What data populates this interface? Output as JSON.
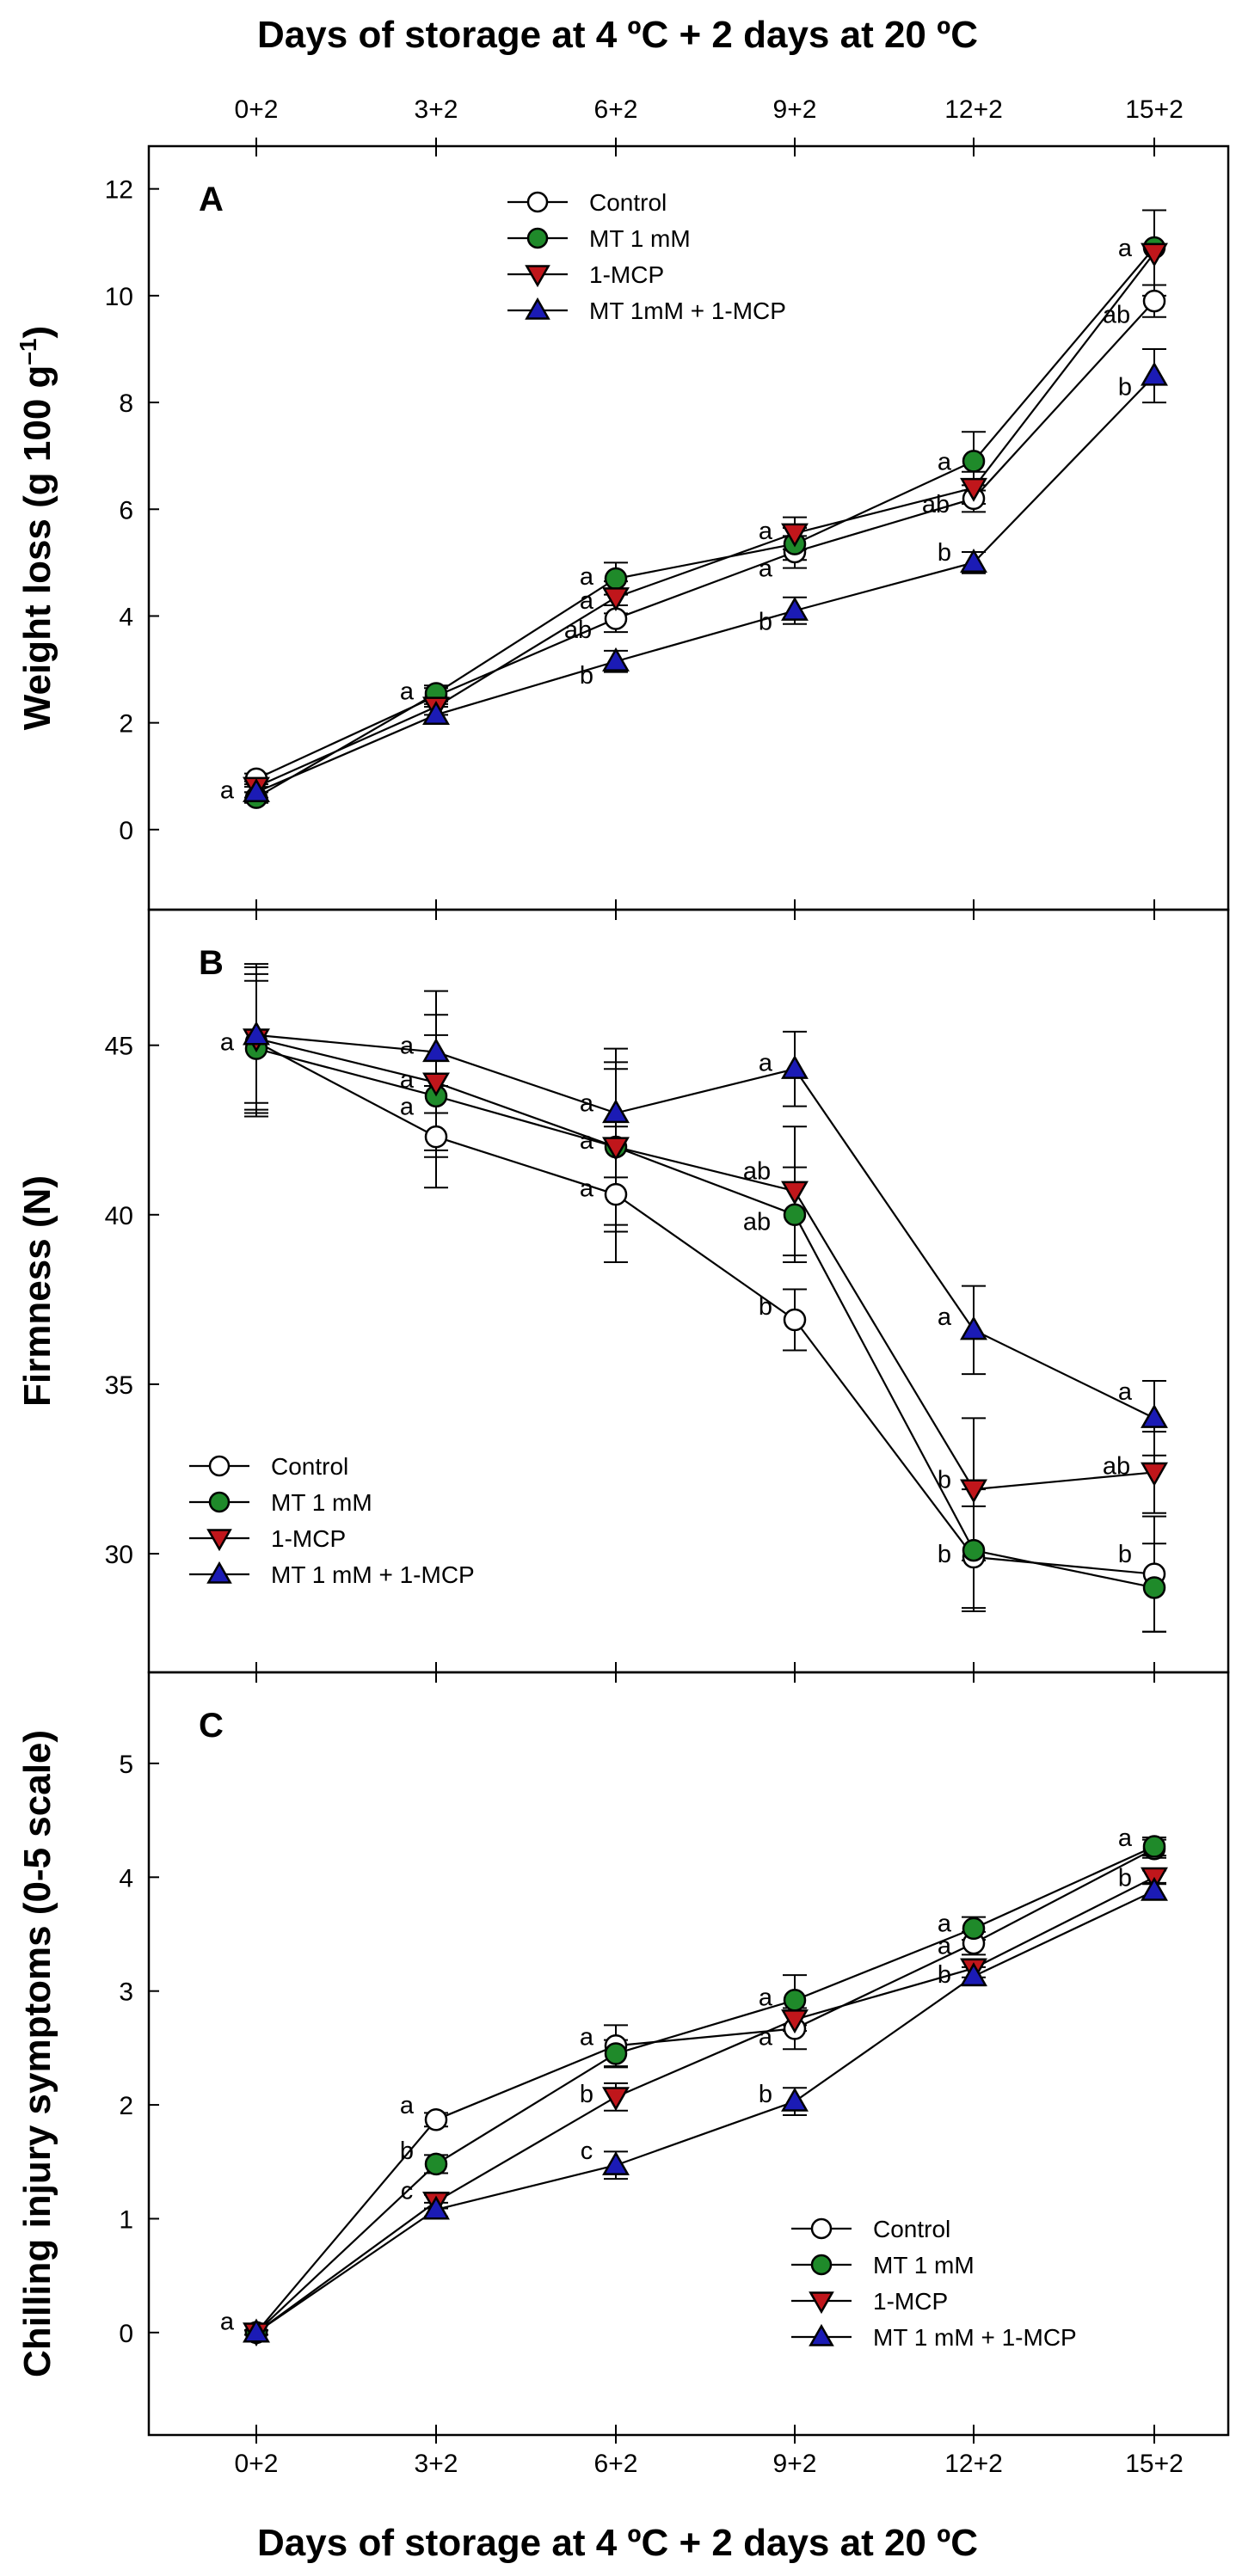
{
  "figure": {
    "top_xlabel": "Days of storage at 4 ºC + 2 days at 20 ºC",
    "bottom_xlabel": "Days of storage at 4 ºC + 2 days at 20 ºC",
    "x_categories": [
      "0+2",
      "3+2",
      "6+2",
      "9+2",
      "12+2",
      "15+2"
    ]
  },
  "colors": {
    "control": "#ffffff",
    "mt": "#1f8a2a",
    "mcp": "#c0161b",
    "combo": "#1b1bb5",
    "stroke": "#000000"
  },
  "chart_data": [
    {
      "type": "line",
      "panel": "A",
      "ylabel": "Weight loss (g 100 g",
      "ylabel_sup": "–1",
      "ylabel_close": ")",
      "ylim": [
        -1.5,
        12.8
      ],
      "yticks": [
        0,
        2,
        4,
        6,
        8,
        10,
        12
      ],
      "legend_position": "top-center",
      "series": [
        {
          "name": "Control",
          "key": "control",
          "marker": "circle",
          "values": [
            0.95,
            2.5,
            3.95,
            5.2,
            6.2,
            9.9
          ],
          "errors": [
            0.1,
            0.15,
            0.25,
            0.3,
            0.25,
            0.3
          ]
        },
        {
          "name": "MT 1 mM",
          "key": "mt",
          "marker": "circle",
          "values": [
            0.6,
            2.55,
            4.7,
            5.35,
            6.9,
            10.9
          ],
          "errors": [
            0.1,
            0.15,
            0.3,
            0.3,
            0.55,
            0.7
          ]
        },
        {
          "name": "1-MCP",
          "key": "mcp",
          "marker": "tri-down",
          "values": [
            0.8,
            2.3,
            4.35,
            5.55,
            6.4,
            10.8
          ],
          "errors": [
            0.1,
            0.15,
            0.3,
            0.3,
            0.3,
            0.8
          ]
        },
        {
          "name": "MT 1mM + 1-MCP",
          "key": "combo",
          "marker": "tri-up",
          "values": [
            0.7,
            2.15,
            3.15,
            4.1,
            5.0,
            8.5
          ],
          "errors": [
            0.1,
            0.15,
            0.2,
            0.25,
            0.2,
            0.5
          ]
        }
      ],
      "annotations": [
        {
          "text": "a",
          "x": 0,
          "y": 0.75
        },
        {
          "text": "a",
          "x": 1,
          "y": 2.6
        },
        {
          "text": "a",
          "x": 2,
          "y": 4.75
        },
        {
          "text": "a",
          "x": 2,
          "y": 4.3
        },
        {
          "text": "ab",
          "x": 2,
          "y": 3.75
        },
        {
          "text": "b",
          "x": 2,
          "y": 2.9
        },
        {
          "text": "a",
          "x": 3,
          "y": 5.6
        },
        {
          "text": "a",
          "x": 3,
          "y": 4.9
        },
        {
          "text": "b",
          "x": 3,
          "y": 3.9
        },
        {
          "text": "a",
          "x": 4,
          "y": 6.9
        },
        {
          "text": "ab",
          "x": 4,
          "y": 6.1
        },
        {
          "text": "b",
          "x": 4,
          "y": 5.2
        },
        {
          "text": "a",
          "x": 5,
          "y": 10.9
        },
        {
          "text": "ab",
          "x": 5,
          "y": 9.65
        },
        {
          "text": "b",
          "x": 5,
          "y": 8.3
        }
      ]
    },
    {
      "type": "line",
      "panel": "B",
      "ylabel": "Firmness (N)",
      "ylim": [
        26.5,
        49
      ],
      "yticks": [
        30,
        35,
        40,
        45
      ],
      "legend_position": "bottom-left",
      "series": [
        {
          "name": "Control",
          "key": "control",
          "marker": "circle",
          "values": [
            45.1,
            42.3,
            40.6,
            36.9,
            29.9,
            29.4
          ],
          "errors": [
            2.0,
            1.5,
            2.0,
            0.9,
            1.5,
            1.7
          ]
        },
        {
          "name": "MT 1 mM",
          "key": "mt",
          "marker": "circle",
          "values": [
            44.9,
            43.5,
            42.0,
            40.0,
            30.1,
            29.0
          ],
          "errors": [
            2.0,
            1.8,
            2.5,
            1.4,
            1.8,
            1.3
          ]
        },
        {
          "name": "1-MCP",
          "key": "mcp",
          "marker": "tri-down",
          "values": [
            45.2,
            43.9,
            42.0,
            40.7,
            31.9,
            32.4
          ],
          "errors": [
            2.2,
            2.0,
            2.3,
            1.9,
            2.1,
            1.2
          ]
        },
        {
          "name": "MT 1 mM + 1-MCP",
          "key": "combo",
          "marker": "tri-up",
          "values": [
            45.3,
            44.8,
            43.0,
            44.3,
            36.6,
            34.0
          ],
          "errors": [
            2.0,
            1.8,
            1.9,
            1.1,
            1.3,
            1.1
          ]
        }
      ],
      "annotations": [
        {
          "text": "a",
          "x": 0,
          "y": 45.1
        },
        {
          "text": "a",
          "x": 1,
          "y": 45.0
        },
        {
          "text": "a",
          "x": 1,
          "y": 44.0
        },
        {
          "text": "a",
          "x": 1,
          "y": 43.2
        },
        {
          "text": "a",
          "x": 2,
          "y": 43.3
        },
        {
          "text": "a",
          "x": 2,
          "y": 42.2
        },
        {
          "text": "a",
          "x": 2,
          "y": 40.8
        },
        {
          "text": "a",
          "x": 3,
          "y": 44.5
        },
        {
          "text": "ab",
          "x": 3,
          "y": 41.3
        },
        {
          "text": "ab",
          "x": 3,
          "y": 39.8
        },
        {
          "text": "b",
          "x": 3,
          "y": 37.3
        },
        {
          "text": "a",
          "x": 4,
          "y": 37.0
        },
        {
          "text": "b",
          "x": 4,
          "y": 32.2
        },
        {
          "text": "b",
          "x": 4,
          "y": 30.0
        },
        {
          "text": "a",
          "x": 5,
          "y": 34.8
        },
        {
          "text": "ab",
          "x": 5,
          "y": 32.6
        },
        {
          "text": "b",
          "x": 5,
          "y": 30.0
        }
      ]
    },
    {
      "type": "line",
      "panel": "C",
      "ylabel": "Chilling injury symptoms (0-5 scale)",
      "ylim": [
        -0.9,
        5.8
      ],
      "yticks": [
        0,
        1,
        2,
        3,
        4,
        5
      ],
      "legend_position": "bottom-right",
      "series": [
        {
          "name": "Control",
          "key": "control",
          "marker": "circle",
          "values": [
            0.0,
            1.87,
            2.52,
            2.67,
            3.42,
            4.25
          ],
          "errors": [
            0.02,
            0.06,
            0.18,
            0.18,
            0.1,
            0.08
          ]
        },
        {
          "name": "MT 1 mM",
          "key": "mt",
          "marker": "circle",
          "values": [
            0.0,
            1.48,
            2.45,
            2.92,
            3.55,
            4.27
          ],
          "errors": [
            0.02,
            0.08,
            0.12,
            0.22,
            0.1,
            0.08
          ]
        },
        {
          "name": "1-MCP",
          "key": "mcp",
          "marker": "tri-down",
          "values": [
            0.0,
            1.15,
            2.07,
            2.75,
            3.2,
            4.0
          ],
          "errors": [
            0.02,
            0.06,
            0.12,
            0.1,
            0.08,
            0.06
          ]
        },
        {
          "name": "MT 1 mM + 1-MCP",
          "key": "combo",
          "marker": "tri-up",
          "values": [
            0.0,
            1.08,
            1.47,
            2.03,
            3.13,
            3.88
          ],
          "errors": [
            0.02,
            0.06,
            0.12,
            0.12,
            0.08,
            0.07
          ]
        }
      ],
      "annotations": [
        {
          "text": "a",
          "x": 0,
          "y": 0.1
        },
        {
          "text": "a",
          "x": 1,
          "y": 2.0
        },
        {
          "text": "b",
          "x": 1,
          "y": 1.6
        },
        {
          "text": "c",
          "x": 1,
          "y": 1.25
        },
        {
          "text": "a",
          "x": 2,
          "y": 2.6
        },
        {
          "text": "b",
          "x": 2,
          "y": 2.1
        },
        {
          "text": "c",
          "x": 2,
          "y": 1.6
        },
        {
          "text": "a",
          "x": 3,
          "y": 2.95
        },
        {
          "text": "a",
          "x": 3,
          "y": 2.6
        },
        {
          "text": "b",
          "x": 3,
          "y": 2.1
        },
        {
          "text": "a",
          "x": 4,
          "y": 3.6
        },
        {
          "text": "a",
          "x": 4,
          "y": 3.4
        },
        {
          "text": "b",
          "x": 4,
          "y": 3.15
        },
        {
          "text": "a",
          "x": 5,
          "y": 4.35
        },
        {
          "text": "b",
          "x": 5,
          "y": 4.0
        }
      ]
    }
  ]
}
